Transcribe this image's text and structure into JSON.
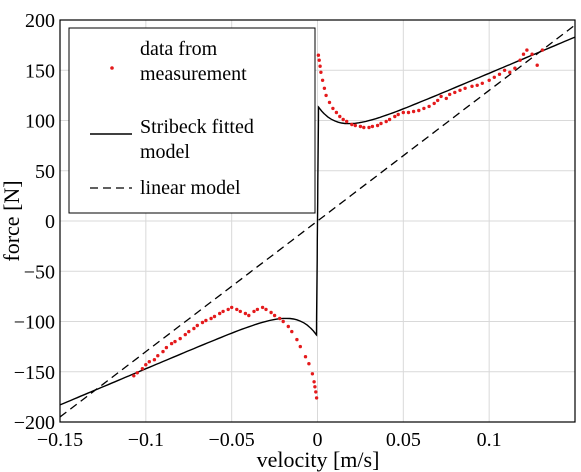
{
  "chart_data": {
    "type": "scatter",
    "title": "",
    "xlabel": "velocity [m/s]",
    "ylabel": "force [N]",
    "xlim": [
      -0.15,
      0.15
    ],
    "ylim": [
      -200,
      200
    ],
    "x_ticks": [
      -0.15,
      -0.1,
      -0.05,
      0,
      0.05,
      0.1
    ],
    "x_tick_labels": [
      "−0.15",
      "−0.1",
      "−0.05",
      "0",
      "0.05",
      "0.1"
    ],
    "y_ticks": [
      -200,
      -150,
      -100,
      -50,
      0,
      50,
      100,
      150,
      200
    ],
    "y_tick_labels": [
      "−200",
      "−150",
      "−100",
      "−50",
      "0",
      "50",
      "100",
      "150",
      "200"
    ],
    "grid": true,
    "legend_position": "top-left",
    "colors": {
      "measurement": "#e41a1c",
      "fitted": "#000000",
      "linear": "#000000"
    },
    "series": [
      {
        "name_lines": [
          "data from",
          "measurement"
        ],
        "kind": "markers",
        "points": [
          [
            -0.107,
            -154
          ],
          [
            -0.105,
            -151
          ],
          [
            -0.102,
            -147
          ],
          [
            -0.1,
            -143
          ],
          [
            -0.098,
            -140
          ],
          [
            -0.095,
            -138
          ],
          [
            -0.093,
            -134
          ],
          [
            -0.09,
            -130
          ],
          [
            -0.088,
            -126
          ],
          [
            -0.085,
            -122
          ],
          [
            -0.083,
            -120
          ],
          [
            -0.08,
            -117
          ],
          [
            -0.077,
            -113
          ],
          [
            -0.075,
            -110
          ],
          [
            -0.072,
            -107
          ],
          [
            -0.07,
            -104
          ],
          [
            -0.067,
            -101
          ],
          [
            -0.065,
            -99
          ],
          [
            -0.062,
            -97
          ],
          [
            -0.06,
            -95
          ],
          [
            -0.057,
            -92
          ],
          [
            -0.055,
            -90
          ],
          [
            -0.052,
            -88
          ],
          [
            -0.05,
            -86
          ],
          [
            -0.047,
            -88
          ],
          [
            -0.045,
            -90
          ],
          [
            -0.042,
            -92
          ],
          [
            -0.04,
            -94
          ],
          [
            -0.037,
            -90
          ],
          [
            -0.035,
            -88
          ],
          [
            -0.032,
            -86
          ],
          [
            -0.03,
            -88
          ],
          [
            -0.027,
            -91
          ],
          [
            -0.025,
            -94
          ],
          [
            -0.022,
            -97
          ],
          [
            -0.02,
            -100
          ],
          [
            -0.017,
            -105
          ],
          [
            -0.015,
            -110
          ],
          [
            -0.012,
            -118
          ],
          [
            -0.01,
            -125
          ],
          [
            -0.007,
            -135
          ],
          [
            -0.005,
            -142
          ],
          [
            -0.003,
            -152
          ],
          [
            -0.002,
            -160
          ],
          [
            -0.0015,
            -165
          ],
          [
            -0.001,
            -170
          ],
          [
            -0.0005,
            -176
          ],
          [
            0.0005,
            165
          ],
          [
            0.001,
            160
          ],
          [
            0.0015,
            154
          ],
          [
            0.002,
            148
          ],
          [
            0.003,
            140
          ],
          [
            0.004,
            132
          ],
          [
            0.005,
            125
          ],
          [
            0.007,
            118
          ],
          [
            0.009,
            112
          ],
          [
            0.011,
            108
          ],
          [
            0.013,
            104
          ],
          [
            0.015,
            101
          ],
          [
            0.017,
            99
          ],
          [
            0.02,
            96
          ],
          [
            0.022,
            95
          ],
          [
            0.025,
            94
          ],
          [
            0.027,
            93
          ],
          [
            0.03,
            93
          ],
          [
            0.032,
            94
          ],
          [
            0.035,
            95
          ],
          [
            0.037,
            97
          ],
          [
            0.04,
            99
          ],
          [
            0.042,
            101
          ],
          [
            0.045,
            104
          ],
          [
            0.047,
            106
          ],
          [
            0.05,
            108
          ],
          [
            0.053,
            108
          ],
          [
            0.056,
            109
          ],
          [
            0.059,
            110
          ],
          [
            0.062,
            112
          ],
          [
            0.065,
            114
          ],
          [
            0.068,
            117
          ],
          [
            0.07,
            120
          ],
          [
            0.072,
            124
          ],
          [
            0.075,
            122
          ],
          [
            0.077,
            126
          ],
          [
            0.08,
            128
          ],
          [
            0.083,
            130
          ],
          [
            0.086,
            132
          ],
          [
            0.09,
            134
          ],
          [
            0.093,
            135
          ],
          [
            0.096,
            137
          ],
          [
            0.1,
            140
          ],
          [
            0.103,
            143
          ],
          [
            0.106,
            146
          ],
          [
            0.109,
            150
          ],
          [
            0.112,
            148
          ],
          [
            0.115,
            152
          ],
          [
            0.118,
            160
          ],
          [
            0.12,
            166
          ],
          [
            0.122,
            170
          ],
          [
            0.125,
            166
          ],
          [
            0.128,
            155
          ],
          [
            0.131,
            170
          ]
        ]
      },
      {
        "name_lines": [
          "Stribeck fitted",
          "model"
        ],
        "kind": "solid",
        "model": {
          "Fc": 75,
          "Fs": 115,
          "vs": 0.012,
          "sigma": 720,
          "v_peak_offset": 0.0006
        }
      },
      {
        "name_lines": [
          "linear model"
        ],
        "kind": "dashed",
        "model": {
          "slope": 1300
        }
      }
    ]
  }
}
